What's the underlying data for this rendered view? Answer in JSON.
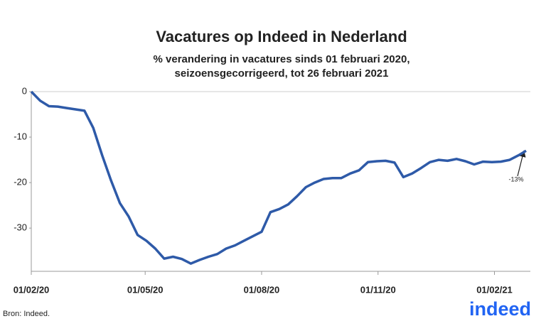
{
  "chart_data": {
    "type": "line",
    "title": "Vacatures op Indeed in Nederland",
    "subtitle": [
      "% verandering in vacatures sinds 01 februari 2020,",
      "seizoensgecorrigeerd, tot 26 februari 2021"
    ],
    "x": [
      "01/02/20",
      "08/02/20",
      "15/02/20",
      "22/02/20",
      "29/02/20",
      "07/03/20",
      "14/03/20",
      "21/03/20",
      "28/03/20",
      "04/04/20",
      "11/04/20",
      "18/04/20",
      "25/04/20",
      "02/05/20",
      "09/05/20",
      "16/05/20",
      "23/05/20",
      "30/05/20",
      "06/06/20",
      "13/06/20",
      "20/06/20",
      "27/06/20",
      "04/07/20",
      "11/07/20",
      "18/07/20",
      "25/07/20",
      "01/08/20",
      "08/08/20",
      "15/08/20",
      "22/08/20",
      "29/08/20",
      "05/09/20",
      "12/09/20",
      "19/09/20",
      "26/09/20",
      "03/10/20",
      "10/10/20",
      "17/10/20",
      "24/10/20",
      "31/10/20",
      "07/11/20",
      "14/11/20",
      "21/11/20",
      "28/11/20",
      "05/12/20",
      "12/12/20",
      "19/12/20",
      "26/12/20",
      "02/01/21",
      "09/01/21",
      "16/01/21",
      "23/01/21",
      "30/01/21",
      "06/02/21",
      "13/02/21",
      "20/02/21",
      "26/02/21"
    ],
    "series": [
      {
        "name": "Vacatures",
        "color": "#2e5aa8",
        "values": [
          0,
          -2,
          -3.2,
          -3.3,
          -3.6,
          -3.9,
          -4.2,
          -8,
          -14,
          -19.5,
          -24.5,
          -27.5,
          -31.5,
          -32.8,
          -34.5,
          -36.7,
          -36.3,
          -36.8,
          -37.8,
          -37,
          -36.3,
          -35.7,
          -34.5,
          -33.8,
          -32.8,
          -31.8,
          -30.8,
          -26.5,
          -25.8,
          -24.8,
          -23,
          -21,
          -20,
          -19.2,
          -19,
          -19,
          -18,
          -17.3,
          -15.5,
          -15.3,
          -15.2,
          -15.6,
          -18.8,
          -18,
          -16.8,
          -15.5,
          -15,
          -15.2,
          -14.8,
          -15.3,
          -16,
          -15.4,
          -15.5,
          -15.4,
          -15,
          -14,
          -13
        ]
      }
    ],
    "xlim": [
      "01/02/20",
      "26/02/21"
    ],
    "xticks": [
      "01/02/20",
      "01/05/20",
      "01/08/20",
      "01/11/20",
      "01/02/21"
    ],
    "ylim": [
      -39.5,
      0
    ],
    "yticks": [
      0,
      -10,
      -20,
      -30
    ],
    "grid": false,
    "annotation": "-13%",
    "source": "Bron: Indeed.",
    "logo": "indeed"
  }
}
